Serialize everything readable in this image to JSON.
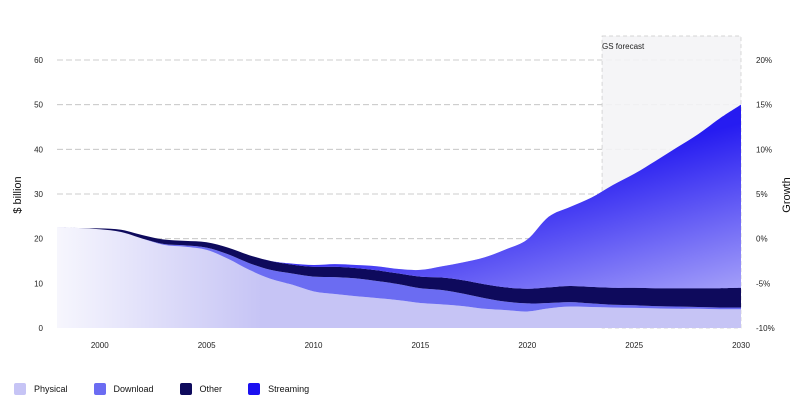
{
  "chart_data": {
    "type": "area",
    "ylabel": "$ billion",
    "y2label": "Growth",
    "annotation": "GS forecast",
    "forecast_range": [
      2023.5,
      2030
    ],
    "x": [
      1998,
      1999,
      2000,
      2001,
      2002,
      2003,
      2004,
      2005,
      2006,
      2007,
      2008,
      2009,
      2010,
      2011,
      2012,
      2013,
      2014,
      2015,
      2016,
      2017,
      2018,
      2019,
      2020,
      2021,
      2022,
      2023,
      2024,
      2025,
      2026,
      2027,
      2028,
      2029,
      2030
    ],
    "xticks": [
      "2000",
      "2005",
      "2010",
      "2015",
      "2020",
      "2025",
      "2030"
    ],
    "xtick_values": [
      2000,
      2005,
      2010,
      2015,
      2020,
      2025,
      2030
    ],
    "ylim": [
      0,
      60
    ],
    "yticks": [
      "0",
      "10",
      "20",
      "30",
      "40",
      "50",
      "60"
    ],
    "y2ticks": [
      "-10%",
      "-5%",
      "0%",
      "5%",
      "10%",
      "15%",
      "20%"
    ],
    "series": [
      {
        "name": "Physical",
        "color": "#c6c4f5",
        "values": [
          22.6,
          22.4,
          22.1,
          21.5,
          20.0,
          18.6,
          18.2,
          17.5,
          15.5,
          13.0,
          11.0,
          9.7,
          8.2,
          7.6,
          7.1,
          6.7,
          6.2,
          5.6,
          5.3,
          4.9,
          4.3,
          4.0,
          3.7,
          4.4,
          4.8,
          4.7,
          4.6,
          4.5,
          4.4,
          4.3,
          4.3,
          4.2,
          4.2
        ]
      },
      {
        "name": "Download",
        "color": "#6b6cf2",
        "values": [
          0,
          0,
          0,
          0,
          0,
          0.2,
          0.3,
          0.5,
          1.0,
          1.5,
          2.0,
          2.5,
          3.3,
          3.8,
          4.0,
          3.8,
          3.6,
          3.3,
          3.2,
          2.8,
          2.4,
          1.9,
          1.8,
          1.2,
          1.0,
          0.8,
          0.6,
          0.6,
          0.5,
          0.5,
          0.4,
          0.4,
          0.4
        ]
      },
      {
        "name": "Other",
        "color": "#0e0a5c",
        "values": [
          0,
          0,
          0.2,
          0.5,
          0.8,
          1.0,
          1.0,
          1.2,
          1.5,
          1.8,
          2.0,
          2.0,
          2.2,
          2.3,
          2.3,
          2.4,
          2.4,
          2.6,
          2.8,
          3.0,
          3.1,
          3.2,
          3.3,
          3.5,
          3.6,
          3.7,
          3.8,
          3.9,
          4.0,
          4.1,
          4.2,
          4.3,
          4.4
        ]
      },
      {
        "name": "Streaming",
        "color": "#1b10f0",
        "values": [
          0,
          0,
          0,
          0,
          0,
          0,
          0,
          0,
          0,
          0,
          0,
          0.2,
          0.4,
          0.6,
          0.7,
          0.9,
          1.0,
          1.5,
          2.5,
          4.0,
          6.0,
          8.5,
          11.0,
          15.8,
          17.7,
          20.0,
          23.0,
          25.5,
          28.5,
          31.5,
          34.5,
          38.0,
          41.0
        ]
      }
    ]
  },
  "legend": [
    {
      "label": "Physical",
      "color": "#c6c4f5"
    },
    {
      "label": "Download",
      "color": "#6b6cf2"
    },
    {
      "label": "Other",
      "color": "#0e0a5c"
    },
    {
      "label": "Streaming",
      "color": "#1b10f0"
    }
  ]
}
